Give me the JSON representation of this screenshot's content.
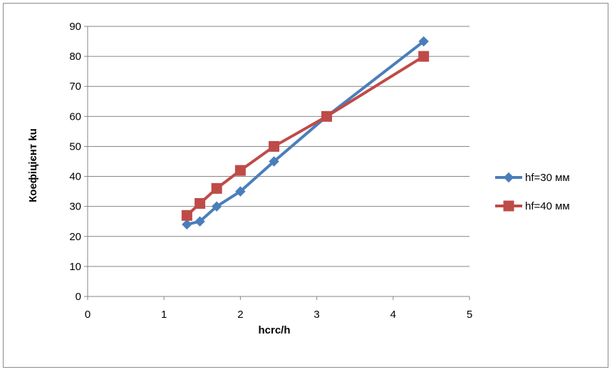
{
  "chart_data": {
    "type": "line",
    "title": "",
    "xlabel": "hcrc/h",
    "ylabel": "Коефіцієнт ku",
    "xlim": [
      0,
      5
    ],
    "ylim": [
      0,
      90
    ],
    "x_ticks": [
      "0",
      "1",
      "2",
      "3",
      "4",
      "5"
    ],
    "y_ticks": [
      "0",
      "10",
      "20",
      "30",
      "40",
      "50",
      "60",
      "70",
      "80",
      "90"
    ],
    "grid": "horizontal",
    "legend_position": "right",
    "series": [
      {
        "name": "hf=30 мм",
        "color": "#4a7ebb",
        "marker": "diamond",
        "x": [
          1.3,
          1.47,
          1.69,
          2.0,
          2.44,
          3.13,
          4.4
        ],
        "y": [
          24,
          25,
          30,
          35,
          45,
          60,
          85
        ]
      },
      {
        "name": "hf=40 мм",
        "color": "#be4b48",
        "marker": "square",
        "x": [
          1.3,
          1.47,
          1.69,
          2.0,
          2.44,
          3.13,
          4.4
        ],
        "y": [
          27,
          31,
          36,
          42,
          50,
          60,
          80
        ]
      }
    ]
  }
}
